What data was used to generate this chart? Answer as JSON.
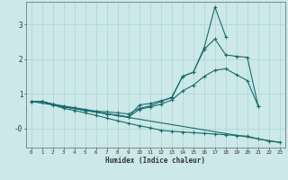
{
  "xlabel": "Humidex (Indice chaleur)",
  "bg_color": "#cce8e8",
  "grid_color": "#aad4d4",
  "line_color": "#1a6b6b",
  "xlim": [
    -0.5,
    23.5
  ],
  "ylim": [
    -0.55,
    3.65
  ],
  "series": [
    {
      "x": [
        0,
        1,
        2,
        3,
        4,
        5,
        6,
        7,
        8,
        9,
        10,
        11,
        12,
        13,
        14,
        15,
        16,
        17,
        18
      ],
      "y": [
        0.78,
        0.78,
        0.7,
        0.65,
        0.6,
        0.55,
        0.5,
        0.48,
        0.45,
        0.42,
        0.58,
        0.65,
        0.78,
        0.9,
        1.5,
        1.62,
        2.32,
        3.5,
        2.65
      ]
    },
    {
      "x": [
        0,
        1,
        2,
        3,
        4,
        5,
        6,
        7,
        8,
        9,
        10,
        11,
        12,
        13,
        14,
        15,
        16,
        17,
        18,
        19,
        20,
        21
      ],
      "y": [
        0.78,
        0.78,
        0.7,
        0.62,
        0.58,
        0.52,
        0.48,
        0.42,
        0.38,
        0.33,
        0.68,
        0.72,
        0.8,
        0.88,
        1.5,
        1.62,
        2.28,
        2.58,
        2.12,
        2.08,
        2.05,
        0.65
      ]
    },
    {
      "x": [
        0,
        1,
        2,
        3,
        4,
        5,
        6,
        7,
        8,
        9,
        10,
        11,
        12,
        13,
        14,
        15,
        16,
        17,
        18,
        19,
        20,
        21
      ],
      "y": [
        0.78,
        0.78,
        0.7,
        0.62,
        0.58,
        0.52,
        0.48,
        0.42,
        0.38,
        0.33,
        0.55,
        0.62,
        0.7,
        0.82,
        1.08,
        1.25,
        1.5,
        1.68,
        1.72,
        1.55,
        1.38,
        0.65
      ]
    },
    {
      "x": [
        0,
        1,
        2,
        3,
        4,
        5,
        6,
        7,
        8,
        9,
        10,
        11,
        12,
        13,
        14,
        15,
        16,
        17,
        18,
        19,
        20,
        21,
        22,
        23
      ],
      "y": [
        0.78,
        0.78,
        0.68,
        0.58,
        0.52,
        0.45,
        0.38,
        0.3,
        0.22,
        0.15,
        0.08,
        0.02,
        -0.05,
        -0.08,
        -0.1,
        -0.12,
        -0.14,
        -0.16,
        -0.18,
        -0.2,
        -0.22,
        -0.3,
        -0.36,
        -0.4
      ]
    },
    {
      "x": [
        0,
        23
      ],
      "y": [
        0.78,
        -0.4
      ]
    }
  ]
}
